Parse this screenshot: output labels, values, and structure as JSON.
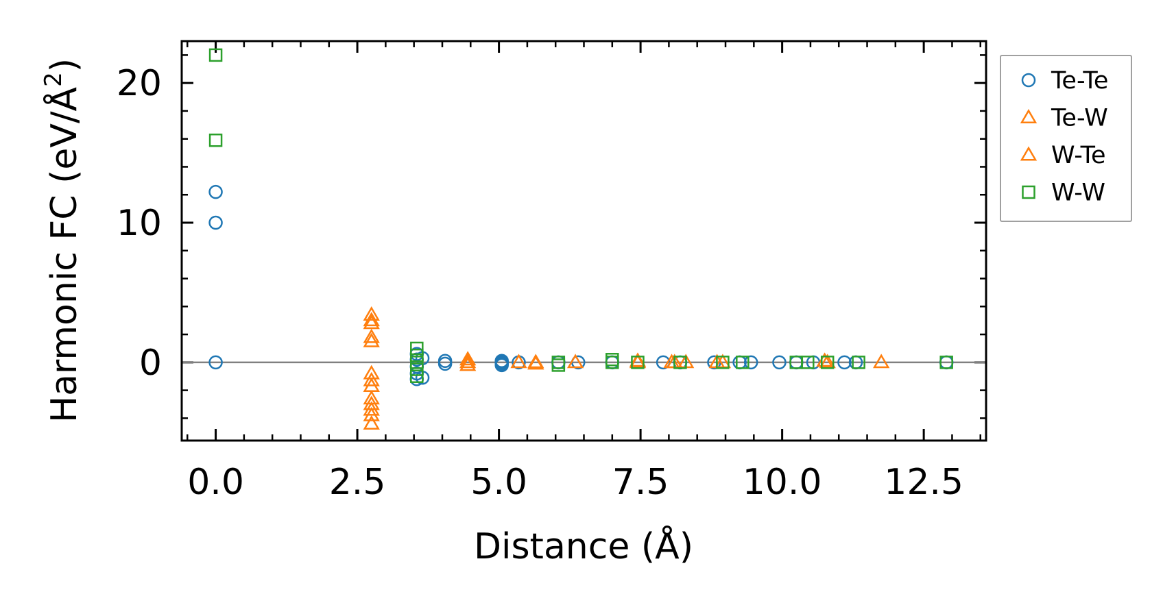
{
  "chart_data": {
    "type": "scatter",
    "xlabel": "Distance (Å)",
    "ylabel_main": "Harmonic FC (eV/Å",
    "ylabel_sup": "2",
    "ylabel_close": ")",
    "xlim": [
      -0.6,
      13.6
    ],
    "ylim": [
      -5.6,
      23.0
    ],
    "xticks": [
      0.0,
      2.5,
      5.0,
      7.5,
      10.0,
      12.5
    ],
    "xtick_labels": [
      "0.0",
      "2.5",
      "5.0",
      "7.5",
      "10.0",
      "12.5"
    ],
    "yticks": [
      0,
      10,
      20
    ],
    "ytick_labels": [
      "0",
      "10",
      "20"
    ],
    "x_minor_step": 0.5,
    "y_minor_step": 2,
    "reference_line_y": 0,
    "legend_position": "outside-right-top",
    "series": [
      {
        "name": "Te-Te",
        "marker": "circle",
        "color": "#1f77b4",
        "points": [
          [
            0,
            0
          ],
          [
            0,
            10
          ],
          [
            0,
            12.2
          ],
          [
            3.55,
            0.6
          ],
          [
            3.55,
            0.2
          ],
          [
            3.55,
            -0.3
          ],
          [
            3.55,
            -0.8
          ],
          [
            3.55,
            -1.2
          ],
          [
            3.65,
            -1.1
          ],
          [
            3.65,
            0.3
          ],
          [
            4.05,
            0.1
          ],
          [
            4.05,
            -0.1
          ],
          [
            5.05,
            0.1
          ],
          [
            5.05,
            0
          ],
          [
            5.05,
            -0.1
          ],
          [
            5.05,
            -0.2
          ],
          [
            5.35,
            0
          ],
          [
            6.05,
            0
          ],
          [
            6.4,
            0
          ],
          [
            7.0,
            0
          ],
          [
            7.9,
            0
          ],
          [
            8.2,
            0
          ],
          [
            8.8,
            0
          ],
          [
            9.25,
            0
          ],
          [
            9.45,
            0
          ],
          [
            9.95,
            0
          ],
          [
            10.25,
            0
          ],
          [
            10.55,
            0
          ],
          [
            11.1,
            0
          ],
          [
            11.3,
            0
          ],
          [
            12.9,
            0
          ]
        ]
      },
      {
        "name": "Te-W",
        "marker": "triangle",
        "color": "#ff7f0e",
        "points": [
          [
            2.75,
            3.4
          ],
          [
            2.75,
            2.8
          ],
          [
            2.75,
            1.8
          ],
          [
            2.75,
            -0.8
          ],
          [
            2.75,
            -1.7
          ],
          [
            2.75,
            -3.0
          ],
          [
            2.75,
            -3.8
          ],
          [
            2.75,
            -4.4
          ],
          [
            4.45,
            0.2
          ],
          [
            4.45,
            -0.2
          ],
          [
            5.35,
            0
          ],
          [
            5.65,
            0
          ],
          [
            6.35,
            0
          ],
          [
            7.45,
            0
          ],
          [
            8.05,
            0
          ],
          [
            8.3,
            0
          ],
          [
            8.85,
            0
          ],
          [
            10.8,
            0
          ],
          [
            11.75,
            0
          ]
        ]
      },
      {
        "name": "W-Te",
        "marker": "triangle",
        "color": "#ff7f0e",
        "points": [
          [
            2.75,
            3.0
          ],
          [
            2.75,
            1.5
          ],
          [
            2.75,
            -1.3
          ],
          [
            2.75,
            -2.6
          ],
          [
            2.75,
            -3.4
          ],
          [
            4.45,
            0
          ],
          [
            5.65,
            -0.1
          ],
          [
            7.45,
            0.1
          ],
          [
            8.1,
            0
          ],
          [
            8.95,
            0
          ],
          [
            10.75,
            0.1
          ]
        ]
      },
      {
        "name": "W-W",
        "marker": "square",
        "color": "#2ca02c",
        "points": [
          [
            0,
            22
          ],
          [
            0,
            15.9
          ],
          [
            3.55,
            1.0
          ],
          [
            3.55,
            0.5
          ],
          [
            3.55,
            0
          ],
          [
            3.55,
            -0.5
          ],
          [
            3.55,
            -1.0
          ],
          [
            6.05,
            0
          ],
          [
            6.05,
            -0.2
          ],
          [
            7.0,
            0.2
          ],
          [
            7.0,
            0
          ],
          [
            7.45,
            0
          ],
          [
            8.2,
            0
          ],
          [
            8.95,
            0
          ],
          [
            9.3,
            0
          ],
          [
            10.25,
            0
          ],
          [
            10.45,
            0
          ],
          [
            10.8,
            0
          ],
          [
            11.35,
            0
          ],
          [
            12.9,
            0
          ]
        ]
      }
    ]
  }
}
